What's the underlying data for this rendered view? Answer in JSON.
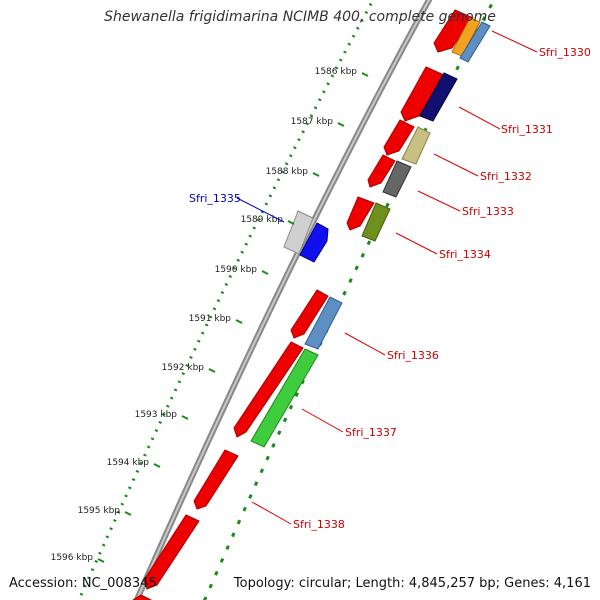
{
  "title": "Shewanella frigidimarina NCIMB 400, complete genome",
  "accession_text": "Accession: NC_008345",
  "topology_text": "Topology: circular; Length: 4,845,257 bp; Genes: 4,161",
  "ruler": {
    "tick_unit": "kbp",
    "ticks": [
      {
        "kbp": 1586,
        "label": "1586 kbp"
      },
      {
        "kbp": 1587,
        "label": "1587 kbp"
      },
      {
        "kbp": 1588,
        "label": "1588 kbp"
      },
      {
        "kbp": 1589,
        "label": "1589 kbp"
      },
      {
        "kbp": 1590,
        "label": "1590 kbp"
      },
      {
        "kbp": 1591,
        "label": "1591 kbp"
      },
      {
        "kbp": 1592,
        "label": "1592 kbp"
      },
      {
        "kbp": 1593,
        "label": "1593 kbp"
      },
      {
        "kbp": 1594,
        "label": "1594 kbp"
      },
      {
        "kbp": 1595,
        "label": "1595 kbp"
      },
      {
        "kbp": 1596,
        "label": "1596 kbp"
      }
    ]
  },
  "gene_labels": [
    {
      "name": "Sfri_1330",
      "color": "#cc0000"
    },
    {
      "name": "Sfri_1331",
      "color": "#cc0000"
    },
    {
      "name": "Sfri_1332",
      "color": "#cc0000"
    },
    {
      "name": "Sfri_1333",
      "color": "#cc0000"
    },
    {
      "name": "Sfri_1334",
      "color": "#cc0000"
    },
    {
      "name": "Sfri_1335",
      "color": "#0000cc"
    },
    {
      "name": "Sfri_1336",
      "color": "#cc0000"
    },
    {
      "name": "Sfri_1337",
      "color": "#cc0000"
    },
    {
      "name": "Sfri_1338",
      "color": "#cc0000"
    }
  ],
  "colors": {
    "backbone": "#8c8c8c",
    "ruler_dots": "#1a8a1a",
    "orf_forward": "#ee0000",
    "orf_reverse": "#ee0000"
  }
}
